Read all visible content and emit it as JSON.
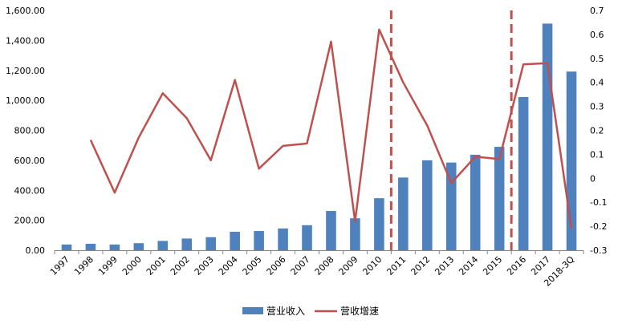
{
  "chart_data": {
    "type": "bar",
    "categories": [
      "1997",
      "1998",
      "1999",
      "2000",
      "2001",
      "2002",
      "2003",
      "2004",
      "2005",
      "2006",
      "2007",
      "2008",
      "2009",
      "2010",
      "2011",
      "2012",
      "2013",
      "2014",
      "2015",
      "2016",
      "2017",
      "2018-3Q"
    ],
    "series": [
      {
        "name": "营业收入",
        "type": "bar",
        "axis": "left",
        "color": "#4F81BD",
        "values": [
          38,
          43,
          38,
          47,
          62,
          78,
          87,
          123,
          128,
          145,
          167,
          262,
          213,
          347,
          485,
          600,
          585,
          637,
          690,
          1022,
          1512,
          1192
        ]
      },
      {
        "name": "营收增速",
        "type": "line",
        "axis": "right",
        "color": "#C0504D",
        "values": [
          null,
          0.16,
          -0.06,
          0.17,
          0.355,
          0.25,
          0.075,
          0.41,
          0.04,
          0.135,
          0.145,
          0.57,
          -0.18,
          0.62,
          0.4,
          0.22,
          -0.02,
          0.09,
          0.08,
          0.475,
          0.48,
          -0.21
        ]
      }
    ],
    "y_left": {
      "ylim": [
        0,
        1600
      ],
      "ticks": [
        0,
        200,
        400,
        600,
        800,
        1000,
        1200,
        1400,
        1600
      ],
      "tick_labels": [
        "0.00",
        "200.00",
        "400.00",
        "600.00",
        "800.00",
        "1,000.00",
        "1,200.00",
        "1,400.00",
        "1,600.00"
      ]
    },
    "y_right": {
      "ylim": [
        -0.3,
        0.7
      ],
      "ticks": [
        -0.3,
        -0.2,
        -0.1,
        0,
        0.1,
        0.2,
        0.3,
        0.4,
        0.5,
        0.6,
        0.7
      ],
      "tick_labels": [
        "-0.3",
        "-0.2",
        "-0.1",
        "0",
        "0.1",
        "0.2",
        "0.3",
        "0.4",
        "0.5",
        "0.6",
        "0.7"
      ]
    },
    "reference_lines": [
      {
        "style": "dashed",
        "color": "#C0504D",
        "between": [
          "2010",
          "2011"
        ]
      },
      {
        "style": "dashed",
        "color": "#C0504D",
        "between": [
          "2015",
          "2016"
        ]
      }
    ],
    "grid": false,
    "legend": {
      "position": "bottom"
    },
    "xlabel": "",
    "ylabel": ""
  }
}
